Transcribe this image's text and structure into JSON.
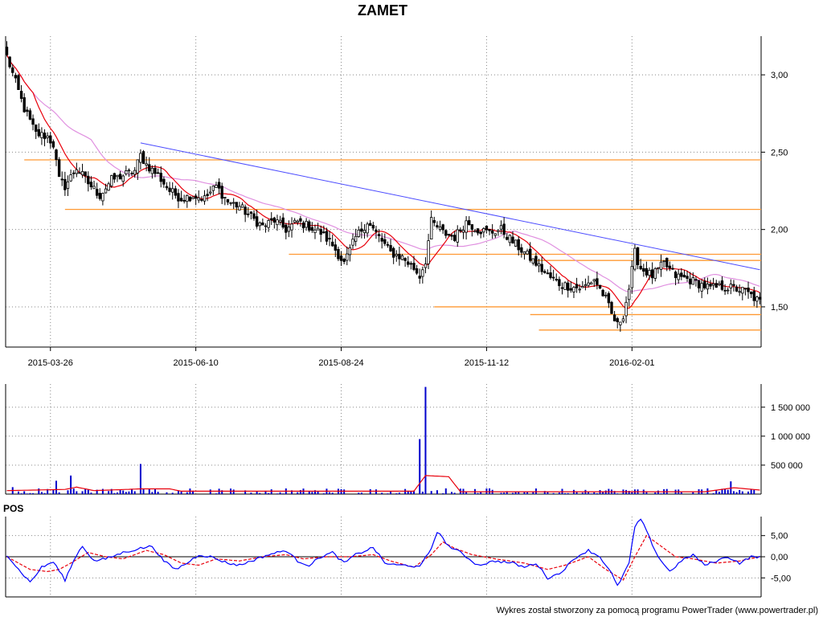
{
  "chart_data": [
    {
      "type": "candlestick",
      "title": "ZAMET",
      "x_ticks": [
        "2015-03-26",
        "2015-06-10",
        "2015-08-24",
        "2015-11-12",
        "2016-02-01"
      ],
      "y_ticks": [
        "3,00",
        "2,50",
        "2,00",
        "1,50"
      ],
      "y_tick_values": [
        3.0,
        2.5,
        2.0,
        1.5
      ],
      "ylim": [
        1.24,
        3.25
      ],
      "n_sessions": 260,
      "x_tick_sessions": [
        15,
        65,
        115,
        165,
        215
      ],
      "close_anchors": [
        [
          0,
          3.12
        ],
        [
          3,
          2.95
        ],
        [
          6,
          2.78
        ],
        [
          10,
          2.62
        ],
        [
          14,
          2.6
        ],
        [
          16,
          2.55
        ],
        [
          18,
          2.32
        ],
        [
          20,
          2.28
        ],
        [
          24,
          2.4
        ],
        [
          28,
          2.3
        ],
        [
          32,
          2.22
        ],
        [
          36,
          2.32
        ],
        [
          40,
          2.35
        ],
        [
          44,
          2.38
        ],
        [
          46,
          2.48
        ],
        [
          48,
          2.42
        ],
        [
          52,
          2.35
        ],
        [
          56,
          2.25
        ],
        [
          60,
          2.2
        ],
        [
          64,
          2.22
        ],
        [
          68,
          2.2
        ],
        [
          72,
          2.28
        ],
        [
          76,
          2.18
        ],
        [
          80,
          2.15
        ],
        [
          84,
          2.08
        ],
        [
          88,
          2.02
        ],
        [
          92,
          2.06
        ],
        [
          96,
          2.0
        ],
        [
          100,
          2.05
        ],
        [
          104,
          2.02
        ],
        [
          108,
          1.98
        ],
        [
          112,
          1.9
        ],
        [
          116,
          1.78
        ],
        [
          120,
          1.95
        ],
        [
          124,
          2.05
        ],
        [
          128,
          1.95
        ],
        [
          132,
          1.85
        ],
        [
          136,
          1.82
        ],
        [
          140,
          1.75
        ],
        [
          142,
          1.7
        ],
        [
          144,
          1.8
        ],
        [
          146,
          2.05
        ],
        [
          150,
          1.98
        ],
        [
          154,
          1.95
        ],
        [
          158,
          2.05
        ],
        [
          162,
          2.0
        ],
        [
          166,
          1.98
        ],
        [
          170,
          2.0
        ],
        [
          174,
          1.92
        ],
        [
          178,
          1.85
        ],
        [
          182,
          1.78
        ],
        [
          186,
          1.7
        ],
        [
          190,
          1.65
        ],
        [
          194,
          1.63
        ],
        [
          198,
          1.62
        ],
        [
          202,
          1.68
        ],
        [
          206,
          1.55
        ],
        [
          208,
          1.45
        ],
        [
          210,
          1.38
        ],
        [
          212,
          1.45
        ],
        [
          214,
          1.62
        ],
        [
          216,
          1.85
        ],
        [
          218,
          1.75
        ],
        [
          222,
          1.7
        ],
        [
          226,
          1.78
        ],
        [
          230,
          1.7
        ],
        [
          234,
          1.68
        ],
        [
          238,
          1.65
        ],
        [
          242,
          1.62
        ],
        [
          246,
          1.63
        ],
        [
          250,
          1.62
        ],
        [
          254,
          1.6
        ],
        [
          259,
          1.53
        ]
      ],
      "trendline": [
        [
          46,
          2.56
        ],
        [
          259,
          1.74
        ]
      ],
      "horizontal_levels": [
        {
          "y": 2.45,
          "from": 6
        },
        {
          "y": 2.13,
          "from": 20
        },
        {
          "y": 1.84,
          "from": 97
        },
        {
          "y": 1.8,
          "from": 180
        },
        {
          "y": 1.5,
          "from": 147
        },
        {
          "y": 1.45,
          "from": 180
        },
        {
          "y": 1.35,
          "from": 183
        }
      ],
      "colors": {
        "short_ma": "#e8000b",
        "long_ma": "#e090e0",
        "trendline": "#4b4bff",
        "levels": "#ff9933",
        "candle": "#000000"
      }
    },
    {
      "type": "bar",
      "name": "volume",
      "y_ticks": [
        "1 500 000",
        "1 000 000",
        "500 000"
      ],
      "y_tick_values": [
        1500000,
        1000000,
        500000
      ],
      "ylim": [
        0,
        1900000
      ],
      "spikes": [
        [
          142,
          950000
        ],
        [
          144,
          1850000
        ],
        [
          46,
          520000
        ],
        [
          22,
          320000
        ],
        [
          17,
          230000
        ],
        [
          249,
          220000
        ],
        [
          2,
          120000
        ]
      ],
      "ma_anchors": [
        [
          0,
          60000
        ],
        [
          20,
          80000
        ],
        [
          24,
          120000
        ],
        [
          30,
          60000
        ],
        [
          46,
          90000
        ],
        [
          56,
          90000
        ],
        [
          60,
          50000
        ],
        [
          140,
          50000
        ],
        [
          144,
          320000
        ],
        [
          152,
          300000
        ],
        [
          156,
          40000
        ],
        [
          240,
          40000
        ],
        [
          250,
          110000
        ],
        [
          259,
          70000
        ]
      ],
      "colors": {
        "bars": "#0000cc",
        "ma": "#e8000b"
      }
    },
    {
      "type": "line",
      "name": "POS",
      "label": "POS",
      "y_ticks": [
        "5,00",
        "0,00",
        "-5,00"
      ],
      "y_tick_values": [
        5,
        0,
        -5
      ],
      "ylim": [
        -9.5,
        9.5
      ],
      "pos_anchors": [
        [
          0,
          0.5
        ],
        [
          4,
          -3
        ],
        [
          8,
          -6
        ],
        [
          12,
          -2.5
        ],
        [
          16,
          -1.2
        ],
        [
          20,
          -5.5
        ],
        [
          24,
          0.5
        ],
        [
          26,
          2.5
        ],
        [
          30,
          -1
        ],
        [
          34,
          -0.5
        ],
        [
          40,
          1
        ],
        [
          46,
          2
        ],
        [
          50,
          2.5
        ],
        [
          54,
          -1
        ],
        [
          58,
          -3
        ],
        [
          62,
          -1.5
        ],
        [
          66,
          0.5
        ],
        [
          70,
          0
        ],
        [
          76,
          -1.5
        ],
        [
          80,
          -2
        ],
        [
          84,
          -1
        ],
        [
          90,
          0.5
        ],
        [
          96,
          1.5
        ],
        [
          100,
          -1
        ],
        [
          104,
          -2
        ],
        [
          108,
          0
        ],
        [
          112,
          1
        ],
        [
          116,
          -1.5
        ],
        [
          120,
          0.5
        ],
        [
          126,
          2.2
        ],
        [
          130,
          -1.5
        ],
        [
          134,
          -2
        ],
        [
          138,
          -2
        ],
        [
          142,
          -2.5
        ],
        [
          146,
          2
        ],
        [
          148,
          6
        ],
        [
          152,
          2.5
        ],
        [
          156,
          1
        ],
        [
          162,
          -2
        ],
        [
          168,
          -1
        ],
        [
          174,
          -1.5
        ],
        [
          178,
          -2.5
        ],
        [
          182,
          -1.5
        ],
        [
          186,
          -5
        ],
        [
          190,
          -4
        ],
        [
          196,
          0
        ],
        [
          200,
          1.5
        ],
        [
          204,
          0
        ],
        [
          208,
          -4
        ],
        [
          210,
          -7
        ],
        [
          214,
          -1.5
        ],
        [
          216,
          7
        ],
        [
          218,
          9
        ],
        [
          220,
          6
        ],
        [
          224,
          0
        ],
        [
          228,
          -3.5
        ],
        [
          232,
          -1
        ],
        [
          236,
          0.5
        ],
        [
          240,
          -2
        ],
        [
          244,
          -1
        ],
        [
          248,
          0
        ],
        [
          252,
          -1.5
        ],
        [
          256,
          0
        ],
        [
          259,
          0
        ]
      ],
      "signal_anchors": [
        [
          0,
          0
        ],
        [
          8,
          -3
        ],
        [
          14,
          -3.5
        ],
        [
          18,
          -3
        ],
        [
          22,
          -1.5
        ],
        [
          28,
          1
        ],
        [
          34,
          0
        ],
        [
          40,
          -0.5
        ],
        [
          48,
          1.5
        ],
        [
          54,
          0.5
        ],
        [
          60,
          -1.5
        ],
        [
          66,
          -2
        ],
        [
          72,
          -0.5
        ],
        [
          80,
          -1
        ],
        [
          88,
          0
        ],
        [
          96,
          0.5
        ],
        [
          102,
          -0.5
        ],
        [
          110,
          0
        ],
        [
          118,
          0
        ],
        [
          126,
          0.5
        ],
        [
          132,
          -1
        ],
        [
          140,
          -2.5
        ],
        [
          146,
          0.5
        ],
        [
          150,
          3.5
        ],
        [
          154,
          2
        ],
        [
          160,
          0.5
        ],
        [
          168,
          -0.5
        ],
        [
          178,
          -1.5
        ],
        [
          186,
          -3
        ],
        [
          192,
          -2
        ],
        [
          200,
          0
        ],
        [
          206,
          -3
        ],
        [
          212,
          -5.5
        ],
        [
          216,
          0
        ],
        [
          220,
          5
        ],
        [
          224,
          3
        ],
        [
          230,
          0
        ],
        [
          236,
          -0.5
        ],
        [
          244,
          -1.5
        ],
        [
          252,
          -1
        ],
        [
          259,
          0
        ]
      ],
      "colors": {
        "pos": "#0000ff",
        "signal": "#e8000b"
      }
    }
  ],
  "footer": "Wykres został stworzony za pomocą programu PowerTrader (www.powertrader.pl)"
}
